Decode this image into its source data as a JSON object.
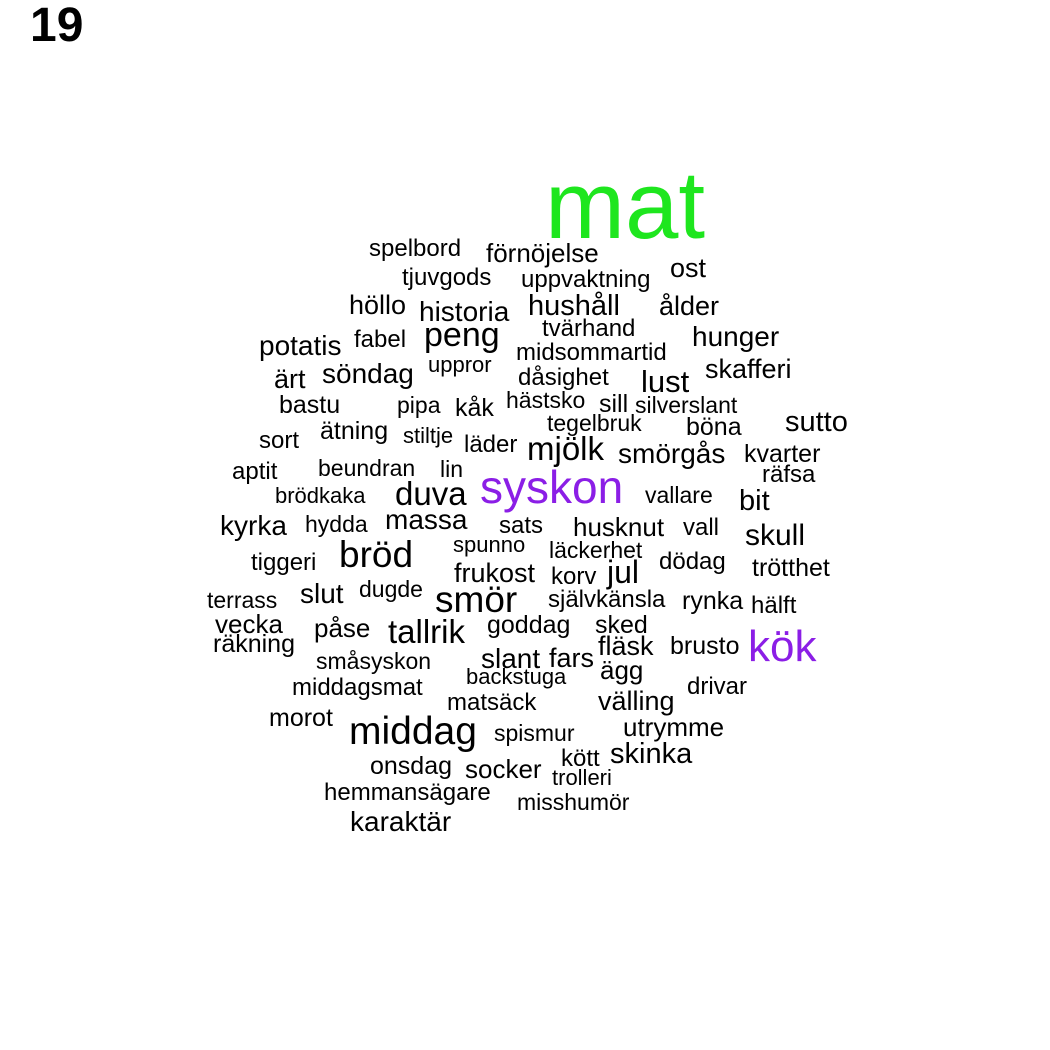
{
  "panel_label": "19",
  "colors": {
    "default": "#000000",
    "highlight_green": "#1ee61e",
    "highlight_purple": "#8b1ee6"
  },
  "words": [
    {
      "text": "mat",
      "color": "#1ee61e"
    },
    {
      "text": "syskon",
      "color": "#8b1ee6"
    },
    {
      "text": "kök",
      "color": "#8b1ee6"
    },
    {
      "text": "spelbord"
    },
    {
      "text": "förnöjelse"
    },
    {
      "text": "tjuvgods"
    },
    {
      "text": "uppvaktning"
    },
    {
      "text": "ost"
    },
    {
      "text": "höllo"
    },
    {
      "text": "historia"
    },
    {
      "text": "hushåll"
    },
    {
      "text": "ålder"
    },
    {
      "text": "tvärhand"
    },
    {
      "text": "potatis"
    },
    {
      "text": "fabel"
    },
    {
      "text": "peng"
    },
    {
      "text": "hunger"
    },
    {
      "text": "midsommartid"
    },
    {
      "text": "uppror"
    },
    {
      "text": "ärt"
    },
    {
      "text": "söndag"
    },
    {
      "text": "dåsighet"
    },
    {
      "text": "lust"
    },
    {
      "text": "skafferi"
    },
    {
      "text": "bastu"
    },
    {
      "text": "pipa"
    },
    {
      "text": "kåk"
    },
    {
      "text": "hästsko"
    },
    {
      "text": "sill"
    },
    {
      "text": "silverslant"
    },
    {
      "text": "ätning"
    },
    {
      "text": "tegelbruk"
    },
    {
      "text": "böna"
    },
    {
      "text": "sutto"
    },
    {
      "text": "sort"
    },
    {
      "text": "stiltje"
    },
    {
      "text": "läder"
    },
    {
      "text": "mjölk"
    },
    {
      "text": "smörgås"
    },
    {
      "text": "kvarter"
    },
    {
      "text": "aptit"
    },
    {
      "text": "beundran"
    },
    {
      "text": "lin"
    },
    {
      "text": "räfsa"
    },
    {
      "text": "brödkaka"
    },
    {
      "text": "duva"
    },
    {
      "text": "vallare"
    },
    {
      "text": "bit"
    },
    {
      "text": "kyrka"
    },
    {
      "text": "hydda"
    },
    {
      "text": "massa"
    },
    {
      "text": "sats"
    },
    {
      "text": "husknut"
    },
    {
      "text": "vall"
    },
    {
      "text": "skull"
    },
    {
      "text": "bröd"
    },
    {
      "text": "spunno"
    },
    {
      "text": "läckerhet"
    },
    {
      "text": "tiggeri"
    },
    {
      "text": "dödag"
    },
    {
      "text": "frukost"
    },
    {
      "text": "korv"
    },
    {
      "text": "jul"
    },
    {
      "text": "trötthet"
    },
    {
      "text": "slut"
    },
    {
      "text": "dugde"
    },
    {
      "text": "terrass"
    },
    {
      "text": "smör"
    },
    {
      "text": "självkänsla"
    },
    {
      "text": "rynka"
    },
    {
      "text": "hälft"
    },
    {
      "text": "vecka"
    },
    {
      "text": "påse"
    },
    {
      "text": "goddag"
    },
    {
      "text": "sked"
    },
    {
      "text": "tallrik"
    },
    {
      "text": "räkning"
    },
    {
      "text": "fläsk"
    },
    {
      "text": "brusto"
    },
    {
      "text": "småsyskon"
    },
    {
      "text": "slant"
    },
    {
      "text": "fars"
    },
    {
      "text": "ägg"
    },
    {
      "text": "backstuga"
    },
    {
      "text": "middagsmat"
    },
    {
      "text": "drivar"
    },
    {
      "text": "matsäck"
    },
    {
      "text": "välling"
    },
    {
      "text": "morot"
    },
    {
      "text": "middag"
    },
    {
      "text": "utrymme"
    },
    {
      "text": "spismur"
    },
    {
      "text": "kött"
    },
    {
      "text": "skinka"
    },
    {
      "text": "onsdag"
    },
    {
      "text": "socker"
    },
    {
      "text": "trolleri"
    },
    {
      "text": "hemmansägare"
    },
    {
      "text": "misshumör"
    },
    {
      "text": "karaktär"
    }
  ]
}
